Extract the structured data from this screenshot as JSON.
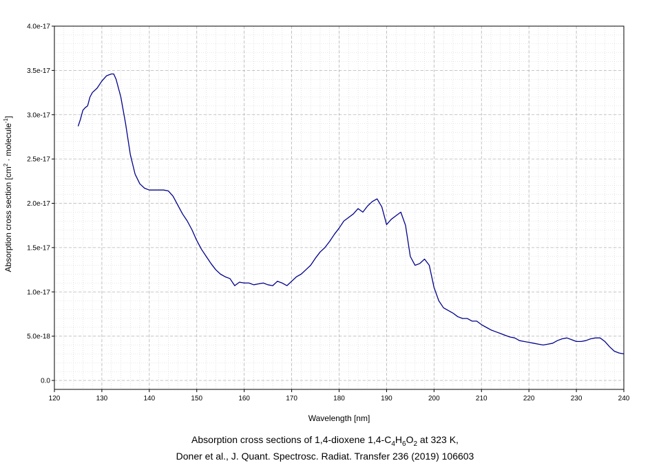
{
  "caption": {
    "line1_prefix": "Absorption cross sections of 1,4-dioxene 1,4-C",
    "formula_parts": [
      {
        "sub": "4",
        "after": "H"
      },
      {
        "sub": "6",
        "after": "O"
      },
      {
        "sub": "2",
        "after": " at 323 K,"
      }
    ],
    "line2": "Doner et al., J. Quant. Spectrosc. Radiat. Transfer 236 (2019) 106603"
  },
  "chart_data": {
    "type": "line",
    "title": "Absorption cross sections of 1,4-dioxene 1,4-C4H6O2 at 323 K",
    "xlabel": "Wavelength [nm]",
    "ylabel_main": "Absorption cross section [cm",
    "ylabel_sup1": "2",
    "ylabel_mid": " · molecule",
    "ylabel_sup2": "-1",
    "ylabel_end": "]",
    "xlim": [
      120,
      240
    ],
    "ylim": [
      0,
      4e-17
    ],
    "x_ticks": [
      120,
      130,
      140,
      150,
      160,
      170,
      180,
      190,
      200,
      210,
      220,
      230,
      240
    ],
    "x_tick_labels": [
      "120",
      "130",
      "140",
      "150",
      "160",
      "170",
      "180",
      "190",
      "200",
      "210",
      "220",
      "230",
      "240"
    ],
    "y_ticks": [
      0,
      5e-18,
      1e-17,
      1.5e-17,
      2e-17,
      2.5e-17,
      3e-17,
      3.5e-17,
      4e-17
    ],
    "y_tick_labels": [
      "0.0",
      "5.0e-18",
      "1.0e-17",
      "1.5e-17",
      "2.0e-17",
      "2.5e-17",
      "3.0e-17",
      "3.5e-17",
      "4.0e-17"
    ],
    "grid": true,
    "line_color": "#00008b",
    "series": [
      {
        "x": [
          125,
          125.5,
          126,
          126.5,
          127,
          127.5,
          128,
          129,
          130,
          131,
          132,
          132.5,
          133,
          134,
          135,
          136,
          137,
          138,
          139,
          140,
          141,
          142,
          143,
          144,
          145,
          146,
          147,
          148,
          149,
          150,
          151,
          152,
          153,
          154,
          155,
          156,
          157,
          158,
          159,
          160,
          161,
          162,
          163,
          164,
          165,
          166,
          167,
          168,
          169,
          170,
          171,
          172,
          173,
          174,
          175,
          176,
          177,
          178,
          179,
          180,
          181,
          182,
          183,
          184,
          185,
          186,
          187,
          188,
          189,
          190,
          191,
          192,
          193,
          194,
          195,
          196,
          197,
          198,
          199,
          200,
          201,
          202,
          203,
          204,
          205,
          206,
          207,
          208,
          209,
          210,
          211,
          212,
          213,
          214,
          215,
          216,
          217,
          218,
          219,
          220,
          221,
          222,
          223,
          224,
          225,
          226,
          227,
          228,
          229,
          230,
          231,
          232,
          233,
          234,
          235,
          236,
          237,
          238,
          239,
          240
        ],
        "y": [
          2.87e-17,
          2.95e-17,
          3.05e-17,
          3.08e-17,
          3.1e-17,
          3.2e-17,
          3.25e-17,
          3.3e-17,
          3.38e-17,
          3.44e-17,
          3.46e-17,
          3.46e-17,
          3.4e-17,
          3.2e-17,
          2.9e-17,
          2.55e-17,
          2.33e-17,
          2.22e-17,
          2.17e-17,
          2.15e-17,
          2.15e-17,
          2.15e-17,
          2.15e-17,
          2.14e-17,
          2.08e-17,
          1.98e-17,
          1.88e-17,
          1.8e-17,
          1.7e-17,
          1.58e-17,
          1.48e-17,
          1.4e-17,
          1.32e-17,
          1.25e-17,
          1.2e-17,
          1.17e-17,
          1.15e-17,
          1.07e-17,
          1.11e-17,
          1.1e-17,
          1.1e-17,
          1.08e-17,
          1.09e-17,
          1.1e-17,
          1.08e-17,
          1.07e-17,
          1.12e-17,
          1.1e-17,
          1.07e-17,
          1.12e-17,
          1.17e-17,
          1.2e-17,
          1.25e-17,
          1.3e-17,
          1.38e-17,
          1.45e-17,
          1.5e-17,
          1.57e-17,
          1.65e-17,
          1.72e-17,
          1.8e-17,
          1.84e-17,
          1.88e-17,
          1.94e-17,
          1.9e-17,
          1.97e-17,
          2.02e-17,
          2.05e-17,
          1.96e-17,
          1.76e-17,
          1.82e-17,
          1.86e-17,
          1.9e-17,
          1.75e-17,
          1.4e-17,
          1.3e-17,
          1.32e-17,
          1.37e-17,
          1.3e-17,
          1.05e-17,
          9e-18,
          8.2e-18,
          7.9e-18,
          7.6e-18,
          7.2e-18,
          7e-18,
          7e-18,
          6.7e-18,
          6.7e-18,
          6.3e-18,
          6e-18,
          5.7e-18,
          5.5e-18,
          5.3e-18,
          5.1e-18,
          4.9e-18,
          4.8e-18,
          4.5e-18,
          4.4e-18,
          4.3e-18,
          4.2e-18,
          4.1e-18,
          4e-18,
          4.1e-18,
          4.2e-18,
          4.5e-18,
          4.7e-18,
          4.8e-18,
          4.6e-18,
          4.4e-18,
          4.4e-18,
          4.5e-18,
          4.7e-18,
          4.8e-18,
          4.8e-18,
          4.4e-18,
          3.8e-18,
          3.3e-18,
          3.1e-18,
          3e-18
        ]
      }
    ]
  }
}
